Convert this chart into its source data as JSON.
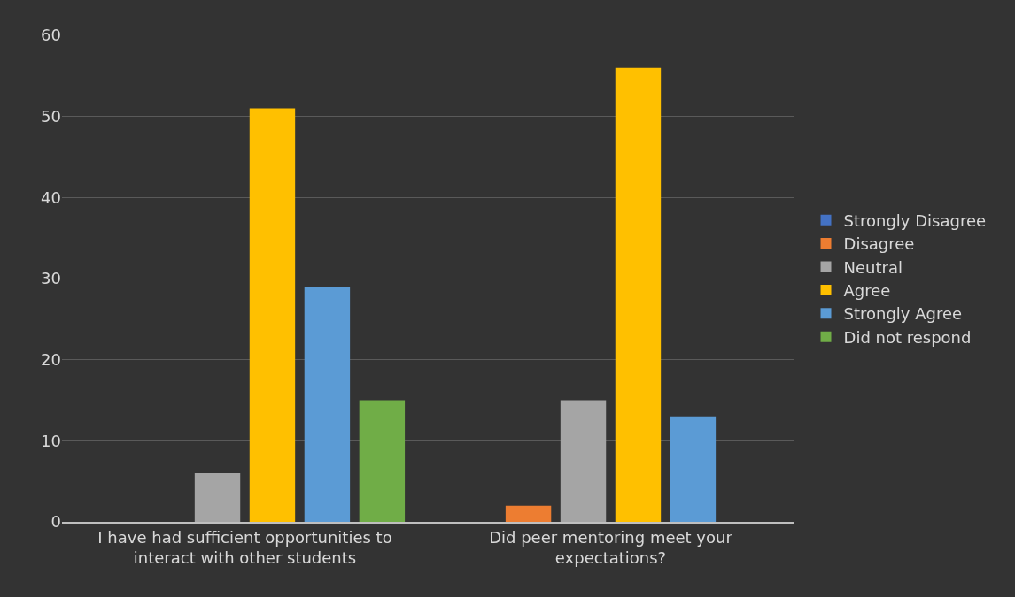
{
  "chart_data": {
    "type": "bar",
    "categories": [
      "I have had sufficient opportunities to interact with other students",
      "Did peer mentoring meet your expectations?"
    ],
    "series": [
      {
        "name": "Strongly Disagree",
        "color": "#4472c4",
        "values": [
          0,
          0
        ]
      },
      {
        "name": "Disagree",
        "color": "#ed7d31",
        "values": [
          0,
          2
        ]
      },
      {
        "name": "Neutral",
        "color": "#a5a5a5",
        "values": [
          6,
          15
        ]
      },
      {
        "name": "Agree",
        "color": "#ffc000",
        "values": [
          51,
          56
        ]
      },
      {
        "name": "Strongly Agree",
        "color": "#5b9bd5",
        "values": [
          29,
          13
        ]
      },
      {
        "name": "Did not respond",
        "color": "#70ad47",
        "values": [
          15,
          0
        ]
      }
    ],
    "ylim": [
      0,
      60
    ],
    "yticks": [
      0,
      10,
      20,
      30,
      40,
      50,
      60
    ],
    "grid": "y",
    "legend": "right"
  }
}
